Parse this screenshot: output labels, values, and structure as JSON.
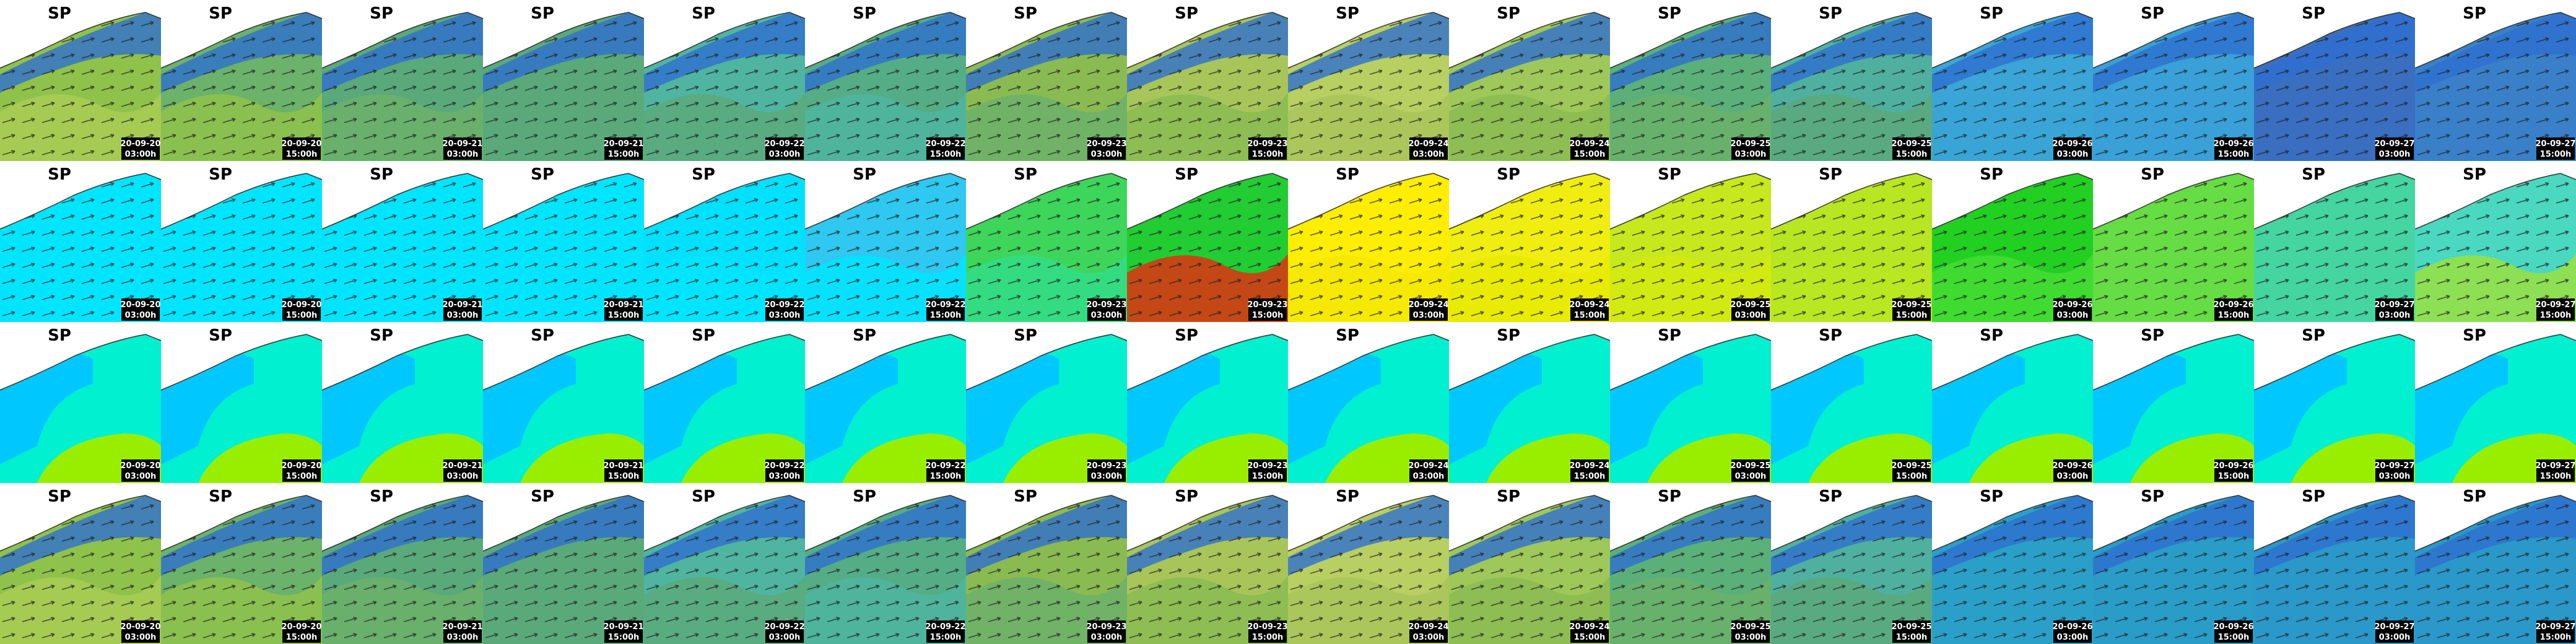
{
  "rows": [
    {
      "tiles": [
        {
          "title": "SP",
          "date": "20-09-20",
          "time": "03:00h",
          "color": "#8fc24a",
          "low": "#a9cc55"
        },
        {
          "title": "SP",
          "date": "20-09-20",
          "time": "15:00h",
          "color": "#6bb26a",
          "low": "#8fc24a"
        },
        {
          "title": "SP",
          "date": "20-09-21",
          "time": "03:00h",
          "color": "#5aa97a",
          "low": "#6bb26a"
        },
        {
          "title": "SP",
          "date": "20-09-21",
          "time": "15:00h",
          "color": "#5aa97a",
          "low": "#5aa97a"
        },
        {
          "title": "SP",
          "date": "20-09-22",
          "time": "03:00h",
          "color": "#4fb5a0",
          "low": "#5aa97a"
        },
        {
          "title": "SP",
          "date": "20-09-22",
          "time": "15:00h",
          "color": "#55ad85",
          "low": "#4fb5a0"
        },
        {
          "title": "SP",
          "date": "20-09-23",
          "time": "03:00h",
          "color": "#8abb52",
          "low": "#6bb26a"
        },
        {
          "title": "SP",
          "date": "20-09-23",
          "time": "15:00h",
          "color": "#a8c55a",
          "low": "#8abb52"
        },
        {
          "title": "SP",
          "date": "20-09-24",
          "time": "03:00h",
          "color": "#b8cf62",
          "low": "#a8c55a"
        },
        {
          "title": "SP",
          "date": "20-09-24",
          "time": "15:00h",
          "color": "#9ec85a",
          "low": "#8abb52"
        },
        {
          "title": "SP",
          "date": "20-09-25",
          "time": "03:00h",
          "color": "#5bb07a",
          "low": "#6bb26a"
        },
        {
          "title": "SP",
          "date": "20-09-25",
          "time": "15:00h",
          "color": "#4fb0a0",
          "low": "#5aa97a"
        },
        {
          "title": "SP",
          "date": "20-09-26",
          "time": "03:00h",
          "color": "#3aa5d6",
          "low": "#3aa5d6"
        },
        {
          "title": "SP",
          "date": "20-09-26",
          "time": "15:00h",
          "color": "#3aa0d8",
          "low": "#3aa0d8"
        },
        {
          "title": "SP",
          "date": "20-09-27",
          "time": "03:00h",
          "color": "#3a6fc0",
          "low": "#3a6fc0"
        },
        {
          "title": "SP",
          "date": "20-09-27",
          "time": "15:00h",
          "color": "#3a80c8",
          "low": "#3a80c8"
        }
      ]
    },
    {
      "tiles": [
        {
          "title": "SP",
          "date": "20-09-20",
          "time": "03:00h",
          "color": "#00e5ff",
          "low": "#00e5ff"
        },
        {
          "title": "SP",
          "date": "20-09-20",
          "time": "15:00h",
          "color": "#00e5ff",
          "low": "#00e5ff"
        },
        {
          "title": "SP",
          "date": "20-09-21",
          "time": "03:00h",
          "color": "#00e5ff",
          "low": "#00e5ff"
        },
        {
          "title": "SP",
          "date": "20-09-21",
          "time": "15:00h",
          "color": "#00e5ff",
          "low": "#00e5ff"
        },
        {
          "title": "SP",
          "date": "20-09-22",
          "time": "03:00h",
          "color": "#00e0ff",
          "low": "#00e5ff"
        },
        {
          "title": "SP",
          "date": "20-09-22",
          "time": "15:00h",
          "color": "#2ec8f0",
          "low": "#00e5ff"
        },
        {
          "title": "SP",
          "date": "20-09-23",
          "time": "03:00h",
          "color": "#3dd65a",
          "low": "#33dd88"
        },
        {
          "title": "SP",
          "date": "20-09-23",
          "time": "15:00h",
          "color": "#22cc33",
          "low": "#e03010"
        },
        {
          "title": "SP",
          "date": "20-09-24",
          "time": "03:00h",
          "color": "#ffee00",
          "low": "#f5e800"
        },
        {
          "title": "SP",
          "date": "20-09-24",
          "time": "15:00h",
          "color": "#f0ee10",
          "low": "#e8ea00"
        },
        {
          "title": "SP",
          "date": "20-09-25",
          "time": "03:00h",
          "color": "#c8e81e",
          "low": "#d4ea10"
        },
        {
          "title": "SP",
          "date": "20-09-25",
          "time": "15:00h",
          "color": "#b8e622",
          "low": "#b8e622"
        },
        {
          "title": "SP",
          "date": "20-09-26",
          "time": "03:00h",
          "color": "#22d022",
          "low": "#44dd33"
        },
        {
          "title": "SP",
          "date": "20-09-26",
          "time": "15:00h",
          "color": "#66dd44",
          "low": "#66dd44"
        },
        {
          "title": "SP",
          "date": "20-09-27",
          "time": "03:00h",
          "color": "#44d5a0",
          "low": "#44d5a0"
        },
        {
          "title": "SP",
          "date": "20-09-27",
          "time": "15:00h",
          "color": "#4ad8c0",
          "low": "#99e040"
        }
      ]
    },
    {
      "tiles": [
        {
          "title": "SP",
          "date": "20-09-20",
          "time": "03:00h",
          "color": "#00f0d0",
          "low": "#99ee00"
        },
        {
          "title": "SP",
          "date": "20-09-20",
          "time": "15:00h",
          "color": "#00f0d0",
          "low": "#99ee00"
        },
        {
          "title": "SP",
          "date": "20-09-21",
          "time": "03:00h",
          "color": "#00f0d0",
          "low": "#99ee00"
        },
        {
          "title": "SP",
          "date": "20-09-21",
          "time": "15:00h",
          "color": "#00f0d0",
          "low": "#99ee00"
        },
        {
          "title": "SP",
          "date": "20-09-22",
          "time": "03:00h",
          "color": "#00f0d0",
          "low": "#99ee00"
        },
        {
          "title": "SP",
          "date": "20-09-22",
          "time": "15:00h",
          "color": "#00f0d0",
          "low": "#99ee00"
        },
        {
          "title": "SP",
          "date": "20-09-23",
          "time": "03:00h",
          "color": "#00f0d0",
          "low": "#99ee00"
        },
        {
          "title": "SP",
          "date": "20-09-23",
          "time": "15:00h",
          "color": "#00f0d0",
          "low": "#99ee00"
        },
        {
          "title": "SP",
          "date": "20-09-24",
          "time": "03:00h",
          "color": "#00f0d0",
          "low": "#99ee00"
        },
        {
          "title": "SP",
          "date": "20-09-24",
          "time": "15:00h",
          "color": "#00f0d0",
          "low": "#99ee00"
        },
        {
          "title": "SP",
          "date": "20-09-25",
          "time": "03:00h",
          "color": "#00f0d0",
          "low": "#99ee00"
        },
        {
          "title": "SP",
          "date": "20-09-25",
          "time": "15:00h",
          "color": "#00f0d0",
          "low": "#99ee00"
        },
        {
          "title": "SP",
          "date": "20-09-26",
          "time": "03:00h",
          "color": "#00f0d0",
          "low": "#99ee00"
        },
        {
          "title": "SP",
          "date": "20-09-26",
          "time": "15:00h",
          "color": "#00f0d0",
          "low": "#99ee00"
        },
        {
          "title": "SP",
          "date": "20-09-27",
          "time": "03:00h",
          "color": "#00f0d0",
          "low": "#99ee00"
        },
        {
          "title": "SP",
          "date": "20-09-27",
          "time": "15:00h",
          "color": "#00f0d0",
          "low": "#99ee00"
        }
      ]
    },
    {
      "tiles": [
        {
          "title": "SP",
          "date": "20-09-20",
          "time": "03:00h",
          "color": "#8fc24a",
          "low": "#a9cc55"
        },
        {
          "title": "SP",
          "date": "20-09-20",
          "time": "15:00h",
          "color": "#6bb26a",
          "low": "#8fc24a"
        },
        {
          "title": "SP",
          "date": "20-09-21",
          "time": "03:00h",
          "color": "#5aa97a",
          "low": "#6bb26a"
        },
        {
          "title": "SP",
          "date": "20-09-21",
          "time": "15:00h",
          "color": "#5aa97a",
          "low": "#5aa97a"
        },
        {
          "title": "SP",
          "date": "20-09-22",
          "time": "03:00h",
          "color": "#4fb5a0",
          "low": "#5aa97a"
        },
        {
          "title": "SP",
          "date": "20-09-22",
          "time": "15:00h",
          "color": "#55ad85",
          "low": "#4fb5a0"
        },
        {
          "title": "SP",
          "date": "20-09-23",
          "time": "03:00h",
          "color": "#8abb52",
          "low": "#6bb26a"
        },
        {
          "title": "SP",
          "date": "20-09-23",
          "time": "15:00h",
          "color": "#a8c55a",
          "low": "#8abb52"
        },
        {
          "title": "SP",
          "date": "20-09-24",
          "time": "03:00h",
          "color": "#b8cf62",
          "low": "#a8c55a"
        },
        {
          "title": "SP",
          "date": "20-09-24",
          "time": "15:00h",
          "color": "#9ec85a",
          "low": "#8abb52"
        },
        {
          "title": "SP",
          "date": "20-09-25",
          "time": "03:00h",
          "color": "#5bb07a",
          "low": "#6bb26a"
        },
        {
          "title": "SP",
          "date": "20-09-25",
          "time": "15:00h",
          "color": "#4fb0a0",
          "low": "#5aa97a"
        },
        {
          "title": "SP",
          "date": "20-09-26",
          "time": "03:00h",
          "color": "#2aa0c8",
          "low": "#2aa0c8"
        },
        {
          "title": "SP",
          "date": "20-09-26",
          "time": "15:00h",
          "color": "#2a9cc8",
          "low": "#2a9cc8"
        },
        {
          "title": "SP",
          "date": "20-09-27",
          "time": "03:00h",
          "color": "#2a98c8",
          "low": "#2a98c8"
        },
        {
          "title": "SP",
          "date": "20-09-27",
          "time": "15:00h",
          "color": "#2a98c8",
          "low": "#2a98c8"
        }
      ]
    }
  ]
}
